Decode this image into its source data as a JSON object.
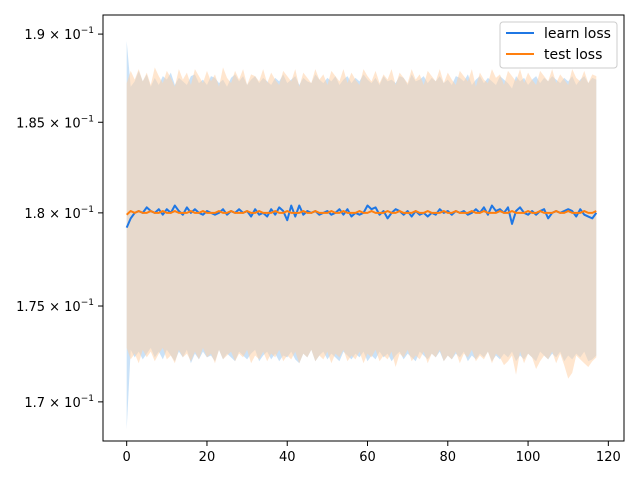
{
  "chart_data": {
    "type": "line",
    "title": "",
    "xlabel": "",
    "ylabel": "",
    "xlim": [
      -5.9,
      123.9
    ],
    "ylim": [
      0.168,
      0.1911
    ],
    "y_scale": "log",
    "x_ticks": [
      0,
      20,
      40,
      60,
      80,
      100,
      120
    ],
    "y_ticks": [
      {
        "value": 0.17,
        "label_base": "1.7",
        "label_mult": " × 10",
        "label_exp": "−1"
      },
      {
        "value": 0.175,
        "label_base": "1.75",
        "label_mult": " × 10",
        "label_exp": "−1"
      },
      {
        "value": 0.18,
        "label_base": "1.8",
        "label_mult": " × 10",
        "label_exp": "−1"
      },
      {
        "value": 0.185,
        "label_base": "1.85",
        "label_mult": " × 10",
        "label_exp": "−1"
      },
      {
        "value": 0.19,
        "label_base": "1.9",
        "label_mult": " × 10",
        "label_exp": "−1"
      }
    ],
    "grid": false,
    "legend_position": "top-right",
    "series": [
      {
        "name": "learn loss",
        "color": "#1f77e4",
        "band_color": "#9ecbf3",
        "x_start": 0,
        "values": [
          0.1792,
          0.1797,
          0.18,
          0.1801,
          0.18,
          0.1803,
          0.1801,
          0.18,
          0.1802,
          0.1799,
          0.1802,
          0.18,
          0.1804,
          0.1801,
          0.1799,
          0.1803,
          0.18,
          0.1802,
          0.18,
          0.1799,
          0.1801,
          0.18,
          0.1799,
          0.18,
          0.1802,
          0.1799,
          0.1801,
          0.18,
          0.1802,
          0.18,
          0.1801,
          0.1798,
          0.1802,
          0.1799,
          0.18,
          0.1798,
          0.1802,
          0.1799,
          0.1803,
          0.1801,
          0.1796,
          0.1804,
          0.1798,
          0.1804,
          0.1799,
          0.1801,
          0.18,
          0.1801,
          0.1799,
          0.18,
          0.1801,
          0.1799,
          0.18,
          0.1802,
          0.1799,
          0.1802,
          0.1798,
          0.18,
          0.1799,
          0.18,
          0.1804,
          0.1802,
          0.1803,
          0.1799,
          0.1801,
          0.1797,
          0.18,
          0.1802,
          0.1801,
          0.1799,
          0.1801,
          0.1798,
          0.1801,
          0.1799,
          0.18,
          0.1798,
          0.18,
          0.1799,
          0.1802,
          0.18,
          0.1801,
          0.1799,
          0.1801,
          0.18,
          0.1801,
          0.1799,
          0.18,
          0.1802,
          0.18,
          0.1803,
          0.1799,
          0.1804,
          0.1801,
          0.1802,
          0.18,
          0.1803,
          0.1794,
          0.1801,
          0.1803,
          0.18,
          0.1799,
          0.1801,
          0.1799,
          0.1801,
          0.1802,
          0.1797,
          0.18,
          0.1801,
          0.18,
          0.1801,
          0.1802,
          0.1801,
          0.1798,
          0.1802,
          0.1799,
          0.1798,
          0.1797,
          0.18
        ],
        "upper": [
          0.1896,
          0.187,
          0.1873,
          0.1879,
          0.1873,
          0.1877,
          0.187,
          0.1875,
          0.1871,
          0.1876,
          0.1874,
          0.1878,
          0.1871,
          0.1875,
          0.1873,
          0.1871,
          0.1876,
          0.1877,
          0.1872,
          0.1874,
          0.1871,
          0.1876,
          0.1875,
          0.1872,
          0.1874,
          0.187,
          0.1875,
          0.1877,
          0.1873,
          0.1876,
          0.1871,
          0.1874,
          0.1876,
          0.1872,
          0.1875,
          0.1873,
          0.1871,
          0.1875,
          0.1873,
          0.1877,
          0.1872,
          0.1874,
          0.1876,
          0.1871,
          0.1875,
          0.1873,
          0.1872,
          0.1877,
          0.1874,
          0.1872,
          0.1875,
          0.1873,
          0.1876,
          0.1871,
          0.1874,
          0.1876,
          0.1872,
          0.1875,
          0.1873,
          0.1877,
          0.1874,
          0.1872,
          0.1875,
          0.1871,
          0.1876,
          0.1873,
          0.1874,
          0.1872,
          0.1876,
          0.1875,
          0.1871,
          0.1877,
          0.1873,
          0.1874,
          0.1876,
          0.1872,
          0.1875,
          0.1873,
          0.1876,
          0.1872,
          0.1874,
          0.1871,
          0.1876,
          0.1875,
          0.1873,
          0.1877,
          0.1871,
          0.1874,
          0.1876,
          0.1872,
          0.1875,
          0.1873,
          0.1871,
          0.1876,
          0.1874,
          0.1872,
          0.1869,
          0.1876,
          0.1873,
          0.1875,
          0.1871,
          0.1874,
          0.1876,
          0.1872,
          0.1875,
          0.1873,
          0.1876,
          0.1874,
          0.1872,
          0.1875,
          0.1873,
          0.1876,
          0.1871,
          0.1874,
          0.1876,
          0.1872,
          0.1875,
          0.1874
        ],
        "lower": [
          0.1686,
          0.1727,
          0.1723,
          0.1726,
          0.1722,
          0.1725,
          0.1728,
          0.1723,
          0.1726,
          0.1722,
          0.1727,
          0.1724,
          0.1721,
          0.1726,
          0.1723,
          0.1727,
          0.172,
          0.1725,
          0.1722,
          0.1726,
          0.1723,
          0.1724,
          0.1721,
          0.1727,
          0.1722,
          0.1725,
          0.1723,
          0.1721,
          0.1726,
          0.1724,
          0.1722,
          0.1725,
          0.1727,
          0.1721,
          0.1724,
          0.1726,
          0.1722,
          0.1725,
          0.1721,
          0.1724,
          0.1723,
          0.1726,
          0.1722,
          0.172,
          0.1725,
          0.1723,
          0.1727,
          0.1721,
          0.1724,
          0.1726,
          0.1722,
          0.1725,
          0.1723,
          0.1721,
          0.1726,
          0.1724,
          0.1722,
          0.1725,
          0.1723,
          0.1726,
          0.1721,
          0.1724,
          0.1722,
          0.1726,
          0.1723,
          0.1725,
          0.1721,
          0.1724,
          0.1726,
          0.1722,
          0.1725,
          0.1723,
          0.1721,
          0.1726,
          0.1724,
          0.1722,
          0.1725,
          0.1723,
          0.1726,
          0.1721,
          0.1724,
          0.1722,
          0.1725,
          0.1723,
          0.1726,
          0.1721,
          0.1724,
          0.1722,
          0.1725,
          0.1723,
          0.1726,
          0.1721,
          0.1724,
          0.1722,
          0.1725,
          0.1723,
          0.1726,
          0.1721,
          0.1724,
          0.1722,
          0.1725,
          0.1723,
          0.1721,
          0.1726,
          0.1724,
          0.1722,
          0.1725,
          0.1723,
          0.1726,
          0.1721,
          0.1724,
          0.1722,
          0.1725,
          0.1723,
          0.1726,
          0.1721,
          0.1722,
          0.1724
        ]
      },
      {
        "name": "test loss",
        "color": "#ff7f0e",
        "band_color": "#ffd2a8",
        "x_start": 0,
        "values": [
          0.1799,
          0.1801,
          0.18,
          0.1801,
          0.18,
          0.18,
          0.1801,
          0.18,
          0.18,
          0.1801,
          0.18,
          0.18,
          0.1801,
          0.18,
          0.18,
          0.18,
          0.1801,
          0.18,
          0.18,
          0.1801,
          0.18,
          0.18,
          0.18,
          0.1801,
          0.18,
          0.18,
          0.1801,
          0.18,
          0.18,
          0.18,
          0.1801,
          0.18,
          0.18,
          0.1801,
          0.18,
          0.18,
          0.18,
          0.1801,
          0.18,
          0.18,
          0.1801,
          0.18,
          0.18,
          0.18,
          0.1801,
          0.18,
          0.18,
          0.1801,
          0.18,
          0.18,
          0.18,
          0.1801,
          0.18,
          0.18,
          0.1801,
          0.18,
          0.18,
          0.18,
          0.1801,
          0.18,
          0.18,
          0.1801,
          0.18,
          0.18,
          0.18,
          0.1801,
          0.18,
          0.18,
          0.1801,
          0.18,
          0.18,
          0.18,
          0.1801,
          0.18,
          0.18,
          0.1801,
          0.18,
          0.18,
          0.18,
          0.1801,
          0.18,
          0.18,
          0.1801,
          0.18,
          0.18,
          0.18,
          0.1801,
          0.18,
          0.18,
          0.1801,
          0.18,
          0.18,
          0.18,
          0.1801,
          0.18,
          0.18,
          0.1801,
          0.18,
          0.18,
          0.18,
          0.1801,
          0.18,
          0.18,
          0.1801,
          0.18,
          0.18,
          0.18,
          0.1801,
          0.18,
          0.18,
          0.1801,
          0.18,
          0.18,
          0.18,
          0.1801,
          0.18,
          0.18,
          0.1801
        ],
        "upper": [
          0.1872,
          0.1879,
          0.1874,
          0.188,
          0.1873,
          0.1878,
          0.1871,
          0.1881,
          0.1876,
          0.1872,
          0.1879,
          0.1875,
          0.187,
          0.188,
          0.1874,
          0.1878,
          0.1871,
          0.188,
          0.1876,
          0.1872,
          0.1879,
          0.1873,
          0.1877,
          0.187,
          0.1881,
          0.1875,
          0.1872,
          0.1879,
          0.1874,
          0.188,
          0.1871,
          0.1877,
          0.1876,
          0.1873,
          0.188,
          0.1872,
          0.1878,
          0.1874,
          0.1871,
          0.1879,
          0.1876,
          0.1873,
          0.188,
          0.187,
          0.1878,
          0.1875,
          0.1872,
          0.188,
          0.1874,
          0.1877,
          0.1871,
          0.1879,
          0.1876,
          0.1873,
          0.188,
          0.1872,
          0.1878,
          0.1874,
          0.1871,
          0.188,
          0.1876,
          0.1873,
          0.1879,
          0.1872,
          0.1877,
          0.1874,
          0.188,
          0.1871,
          0.1878,
          0.1875,
          0.1872,
          0.188,
          0.1874,
          0.1877,
          0.1871,
          0.1879,
          0.1876,
          0.1873,
          0.188,
          0.1872,
          0.1878,
          0.1874,
          0.1871,
          0.1879,
          0.1876,
          0.1873,
          0.188,
          0.187,
          0.1878,
          0.1874,
          0.1872,
          0.188,
          0.1875,
          0.1877,
          0.1871,
          0.1879,
          0.1876,
          0.1873,
          0.188,
          0.1872,
          0.1878,
          0.1874,
          0.1871,
          0.1879,
          0.1876,
          0.1873,
          0.188,
          0.1872,
          0.1877,
          0.1874,
          0.1871,
          0.188,
          0.1875,
          0.1873,
          0.1879,
          0.1872,
          0.1877,
          0.1876
        ],
        "lower": [
          0.1728,
          0.1722,
          0.1725,
          0.172,
          0.1727,
          0.1723,
          0.1726,
          0.1721,
          0.1725,
          0.1728,
          0.1722,
          0.1724,
          0.172,
          0.1727,
          0.1723,
          0.1725,
          0.1721,
          0.1726,
          0.1722,
          0.1728,
          0.1723,
          0.1725,
          0.172,
          0.1727,
          0.1722,
          0.1724,
          0.1726,
          0.1721,
          0.1725,
          0.1723,
          0.1727,
          0.172,
          0.1724,
          0.1722,
          0.1726,
          0.1721,
          0.1725,
          0.1723,
          0.1727,
          0.1721,
          0.1724,
          0.1722,
          0.1726,
          0.172,
          0.1725,
          0.1723,
          0.1727,
          0.1721,
          0.1724,
          0.1722,
          0.1726,
          0.172,
          0.1725,
          0.1723,
          0.1727,
          0.1721,
          0.1724,
          0.1722,
          0.1726,
          0.172,
          0.1725,
          0.1723,
          0.1727,
          0.1721,
          0.1724,
          0.1722,
          0.1726,
          0.1718,
          0.1725,
          0.1723,
          0.1727,
          0.1721,
          0.1724,
          0.1722,
          0.1726,
          0.172,
          0.1725,
          0.1723,
          0.1727,
          0.1721,
          0.1724,
          0.1722,
          0.1726,
          0.172,
          0.1725,
          0.1723,
          0.1727,
          0.1721,
          0.1724,
          0.1722,
          0.1726,
          0.172,
          0.1725,
          0.1723,
          0.1719,
          0.1721,
          0.1724,
          0.1714,
          0.1726,
          0.172,
          0.1725,
          0.1723,
          0.1717,
          0.1721,
          0.1724,
          0.1722,
          0.1726,
          0.172,
          0.1725,
          0.1719,
          0.1712,
          0.1715,
          0.1724,
          0.1722,
          0.172,
          0.1718,
          0.1721,
          0.1723
        ]
      }
    ]
  }
}
